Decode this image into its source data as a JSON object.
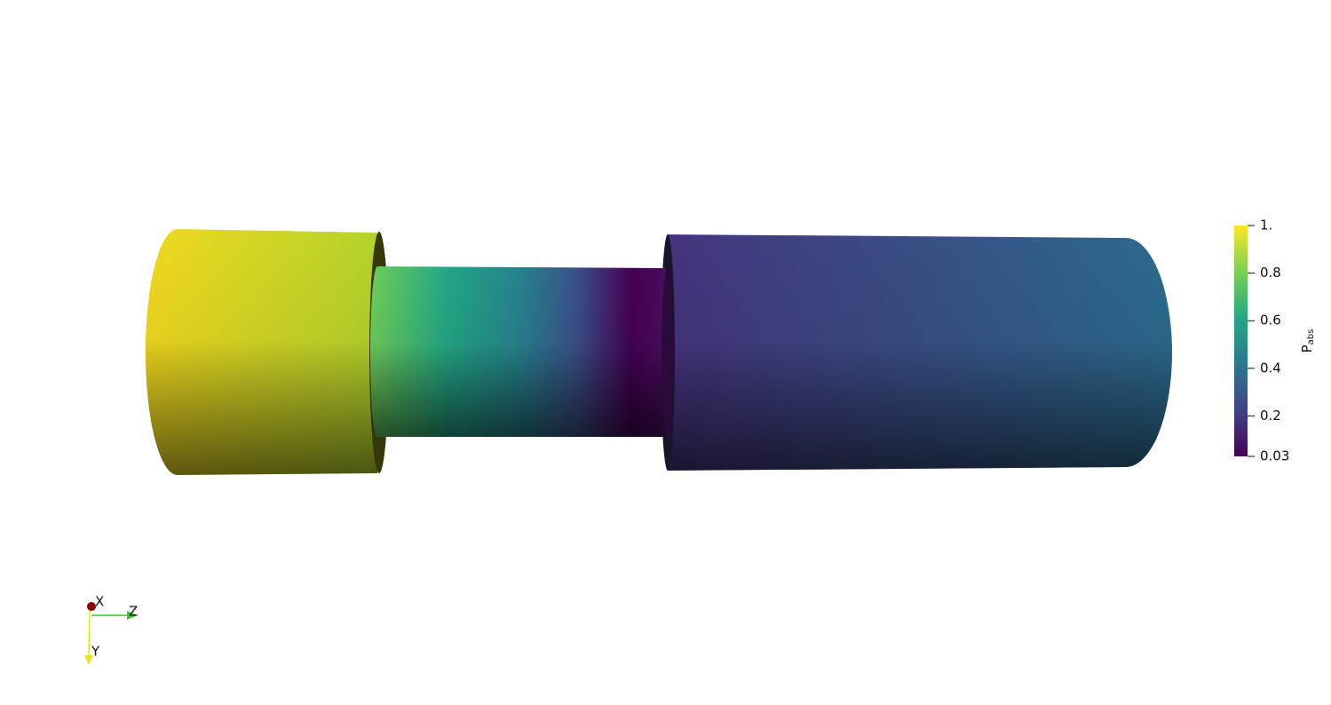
{
  "colorbar": {
    "title": "P",
    "title_subscript": "abs",
    "range": [
      0.03,
      1
    ],
    "ticks": [
      {
        "value": 1,
        "label": "1."
      },
      0.8,
      0.6,
      0.4,
      0.2,
      0.03
    ]
  },
  "axes_triad": {
    "x_label": "X",
    "z_label": "Z",
    "y_label": "Y"
  }
}
